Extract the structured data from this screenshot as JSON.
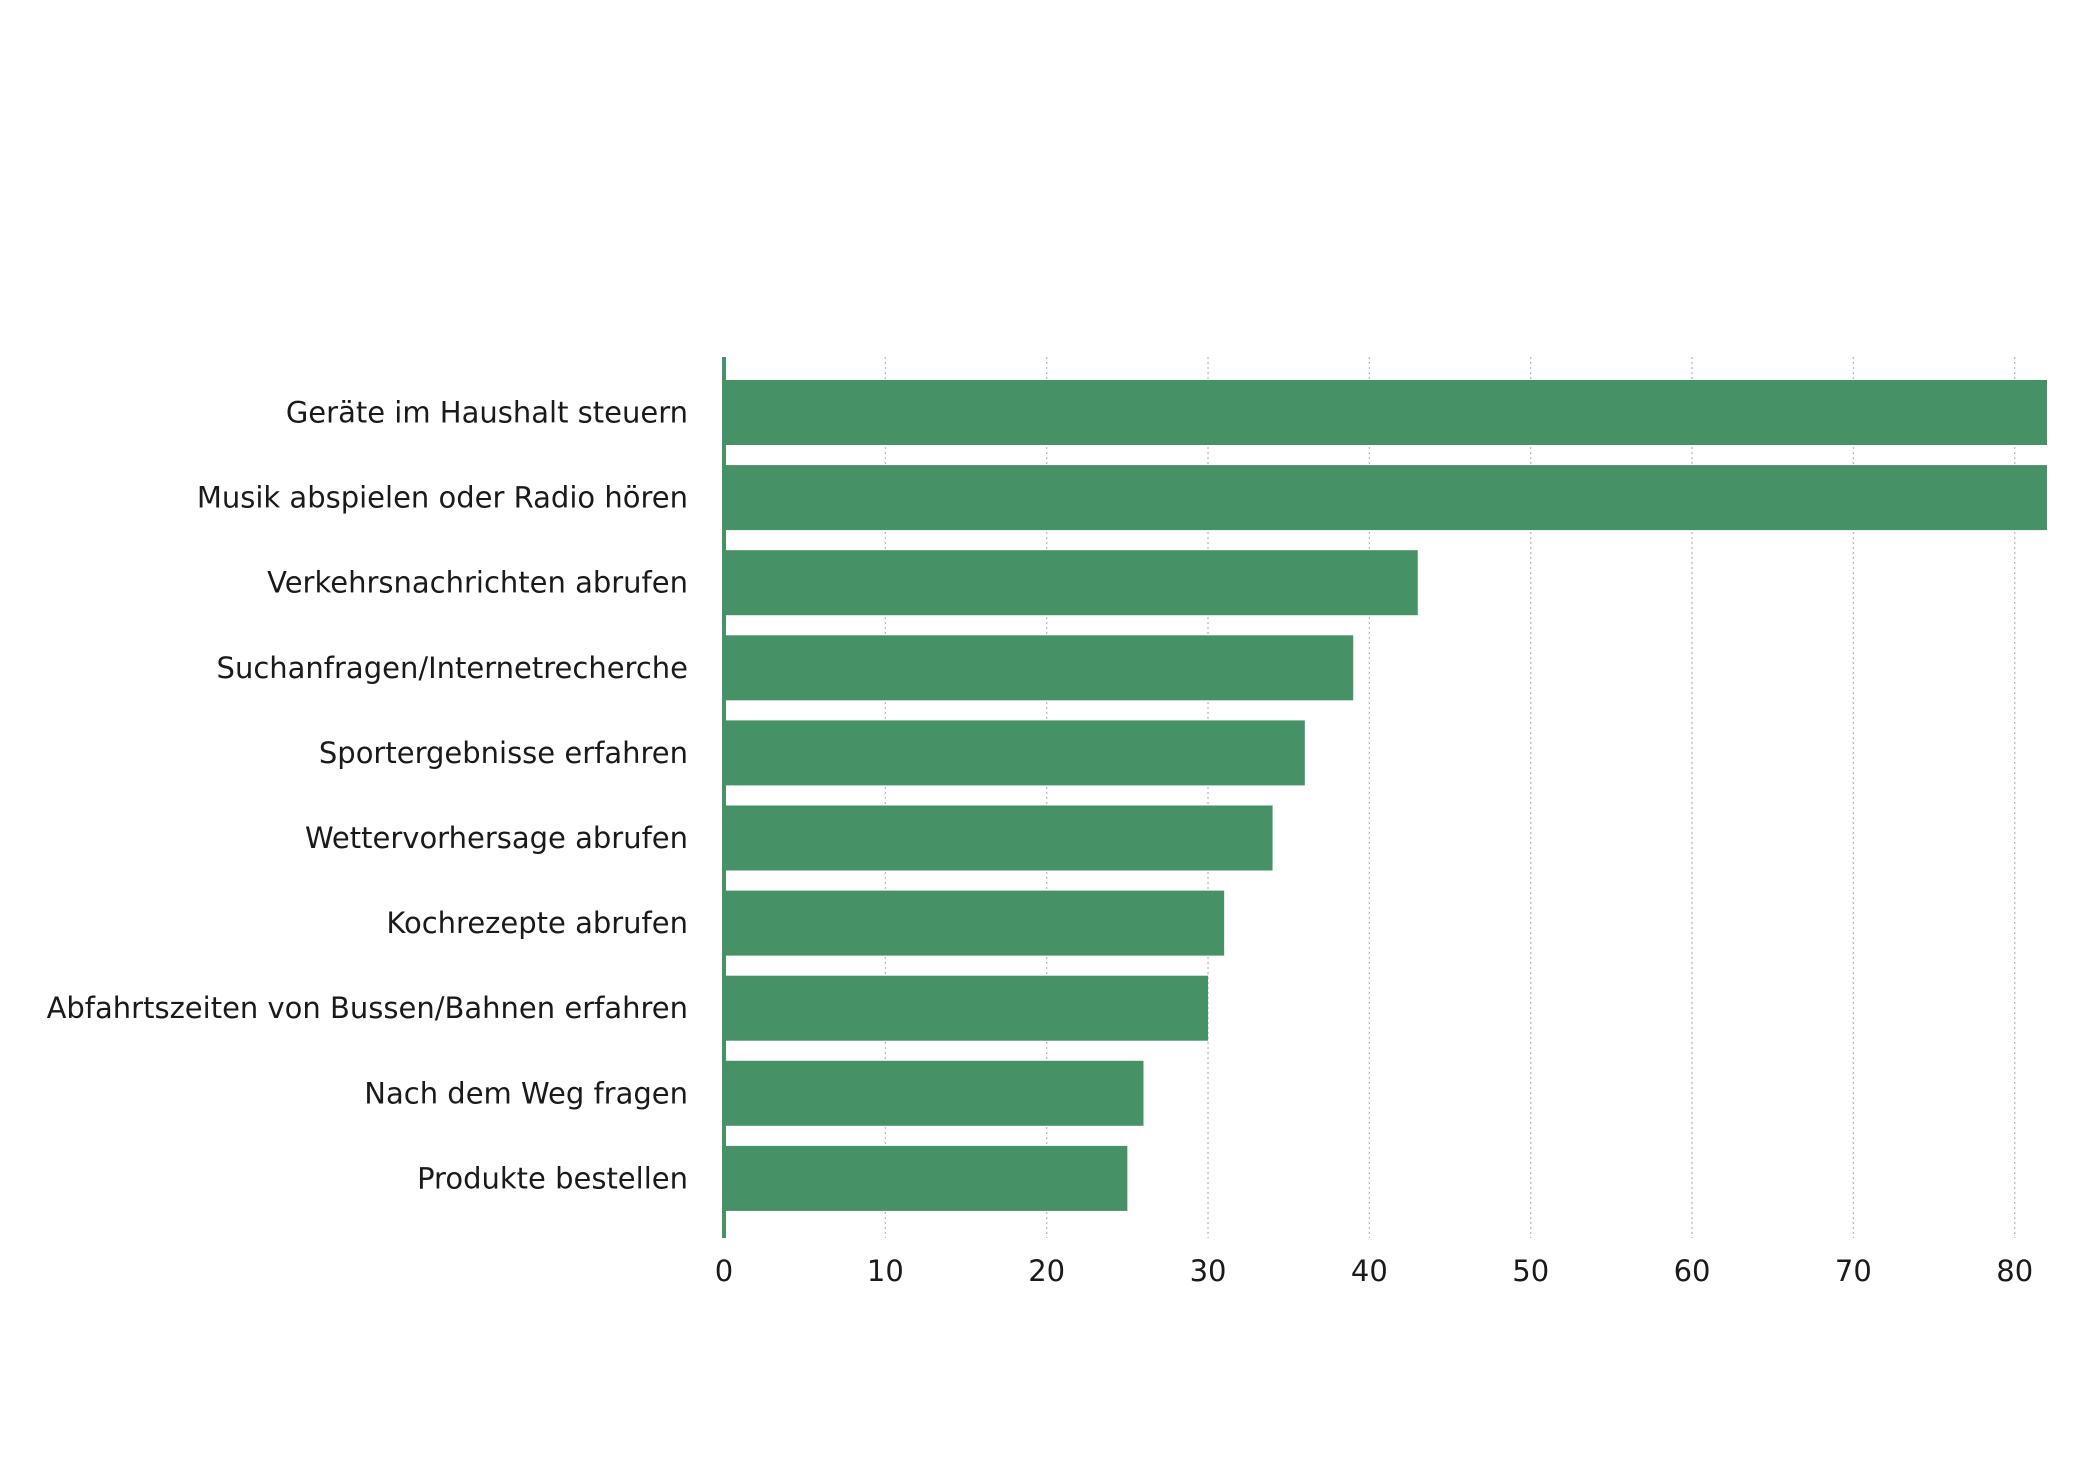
{
  "chart_data": {
    "type": "bar",
    "orientation": "horizontal",
    "categories": [
      "Geräte im Haushalt steuern",
      "Musik abspielen oder Radio hören",
      "Verkehrsnachrichten abrufen",
      "Suchanfragen/Internetrecherche",
      "Sportergebnisse erfahren",
      "Wettervorhersage abrufen",
      "Kochrezepte abrufen",
      "Abfahrtszeiten von Bussen/Bahnen erfahren",
      "Nach dem Weg fragen",
      "Produkte bestellen"
    ],
    "values": [
      82,
      82,
      43,
      39,
      36,
      34,
      31,
      30,
      26,
      25
    ],
    "color": "#469266",
    "xlim": [
      0,
      82
    ],
    "xticks": [
      0,
      10,
      20,
      30,
      40,
      50,
      60,
      70,
      80
    ],
    "grid": true
  }
}
